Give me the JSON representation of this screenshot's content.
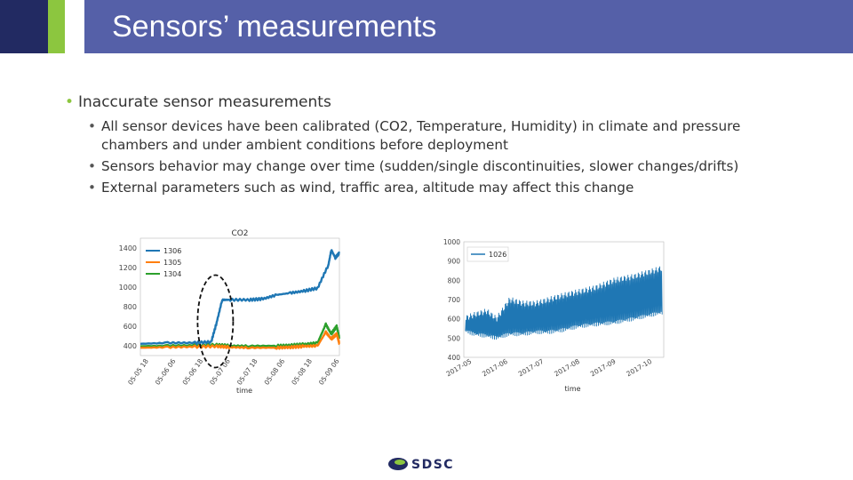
{
  "slide": {
    "title": "Sensors’ measurements",
    "bullet": "Inaccurate sensor measurements",
    "sub_bullets": [
      "All sensor devices have been calibrated (CO2, Temperature, Humidity) in climate and pressure chambers and under ambient conditions before deployment",
      "Sensors behavior may change over time (sudden/single discontinuities, slower changes/drifts)",
      "External parameters such as wind, traffic area, altitude may affect this change"
    ]
  },
  "logo": {
    "text": "SDSC",
    "icon": "sdsc-logo-icon"
  },
  "colors": {
    "header": "#5560a8",
    "accent_dark": "#222a62",
    "accent_green": "#8cc63f"
  },
  "chart_data": [
    {
      "type": "line",
      "title": "CO2",
      "xlabel": "time",
      "ylabel": "",
      "ylim": [
        300,
        1500
      ],
      "yticks": [
        400,
        600,
        800,
        1000,
        1200,
        1400
      ],
      "xtick_labels": [
        "05-05 18",
        "05-06 06",
        "05-06 18",
        "05-07 06",
        "05-07 18",
        "05-08 06",
        "05-08 18",
        "05-09 06"
      ],
      "xlim": [
        0,
        7.3
      ],
      "legend": "top-left",
      "annotation": "dashed ellipse around the sudden jump of sensor 1306",
      "series": [
        {
          "name": "1306",
          "color": "#1f77b4",
          "x": [
            0,
            1,
            2,
            2.6,
            2.8,
            3.0,
            3.3,
            4,
            4.5,
            5,
            5.5,
            6,
            6.5,
            6.9,
            7.0,
            7.15,
            7.3
          ],
          "y": [
            420,
            430,
            430,
            440,
            640,
            870,
            870,
            870,
            880,
            920,
            940,
            960,
            990,
            1230,
            1380,
            1300,
            1350
          ]
        },
        {
          "name": "1305",
          "color": "#ff7f0e",
          "x": [
            0,
            1,
            2,
            2.8,
            3.3,
            4,
            5,
            5.5,
            6,
            6.5,
            6.8,
            7.0,
            7.2,
            7.3
          ],
          "y": [
            380,
            385,
            390,
            395,
            385,
            380,
            380,
            385,
            395,
            400,
            540,
            470,
            520,
            420
          ]
        },
        {
          "name": "1304",
          "color": "#2ca02c",
          "x": [
            0,
            1,
            2,
            2.8,
            3.3,
            4,
            5,
            5.5,
            6,
            6.5,
            6.8,
            7.0,
            7.2,
            7.3
          ],
          "y": [
            395,
            400,
            405,
            410,
            400,
            398,
            400,
            405,
            415,
            430,
            620,
            520,
            600,
            470
          ]
        }
      ]
    },
    {
      "type": "line",
      "title": "",
      "xlabel": "time",
      "ylabel": "",
      "ylim": [
        400,
        1000
      ],
      "yticks": [
        400,
        500,
        600,
        700,
        800,
        900,
        1000
      ],
      "xtick_labels": [
        "2017-05",
        "2017-06",
        "2017-07",
        "2017-08",
        "2017-09",
        "2017-10"
      ],
      "xlim": [
        0,
        6.1
      ],
      "legend": "top-left",
      "series": [
        {
          "name": "1026",
          "color": "#1f77b4",
          "low": [
            540,
            520,
            510,
            500,
            520,
            520,
            530,
            530,
            540,
            560,
            570,
            580,
            600,
            630
          ],
          "high": [
            600,
            620,
            640,
            600,
            700,
            680,
            680,
            700,
            720,
            740,
            760,
            800,
            820,
            860
          ],
          "x": [
            0,
            0.3,
            0.7,
            1.0,
            1.4,
            1.8,
            2.2,
            2.6,
            3.0,
            3.5,
            4.0,
            4.6,
            5.2,
            6.0
          ]
        }
      ]
    }
  ]
}
